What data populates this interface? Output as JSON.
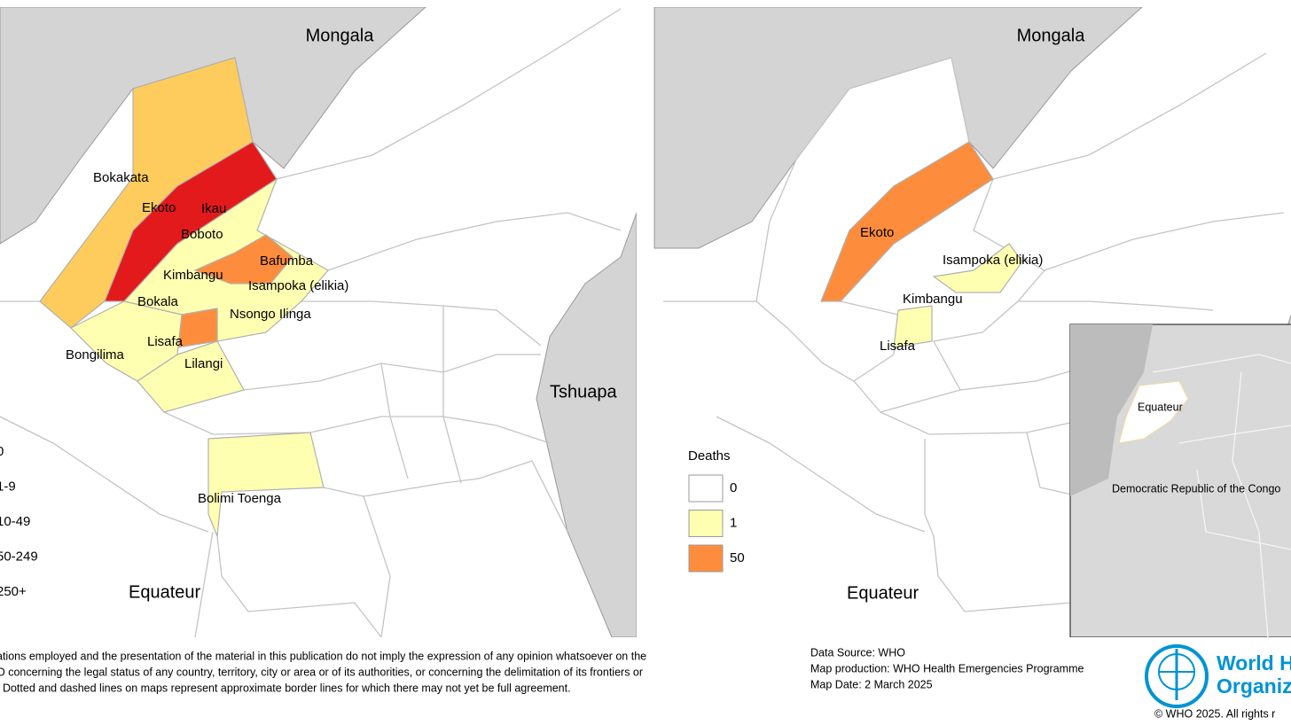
{
  "left_map": {
    "labels": [
      "Mongala",
      "Bokakata",
      "Ekoto",
      "Ikau",
      "Boboto",
      "Bafumba",
      "Kimbangu",
      "Isampoka (elikia)",
      "Bokala",
      "Nsongo Ilinga",
      "Lisafa",
      "Bongilima",
      "Lilangi",
      "Bolimi Toenga",
      "Equateur",
      "Tshuapa"
    ],
    "legend": [
      {
        "label": "0",
        "color": "#ffffff"
      },
      {
        "label": "1-9",
        "color": "#ffffb2"
      },
      {
        "label": "10-49",
        "color": "#fecc5c"
      },
      {
        "label": "50-249",
        "color": "#fd8d3c"
      },
      {
        "label": "250+",
        "color": "#e31a1c"
      }
    ]
  },
  "right_map": {
    "labels": [
      "Mongala",
      "Ekoto",
      "Isampoka (elikia)",
      "Kimbangu",
      "Lisafa",
      "Equateur"
    ],
    "legend_title": "Deaths",
    "legend": [
      {
        "label": "0",
        "color": "#ffffff"
      },
      {
        "label": "1",
        "color": "#ffffb2"
      },
      {
        "label": "50",
        "color": "#fd8d3c"
      }
    ],
    "inset_labels": [
      "Equateur",
      "Democratic Republic of the Congo"
    ]
  },
  "disclaimer": [
    "ations employed and the presentation of the material in this publication do not imply the expression of any opinion whatsoever on the",
    "O concerning the legal status of any country, territory, city or area or of its authorities, or concerning the delimitation of its frontiers or",
    ". Dotted and dashed lines on maps represent approximate border lines for which there may not yet be full agreement."
  ],
  "source": [
    "Data Source: WHO",
    "Map production: WHO Health Emergencies Programme",
    "Map Date: 2 March 2025"
  ],
  "logo": [
    "World H",
    "Organiz"
  ],
  "copyright": "© WHO 2025. All rights r"
}
